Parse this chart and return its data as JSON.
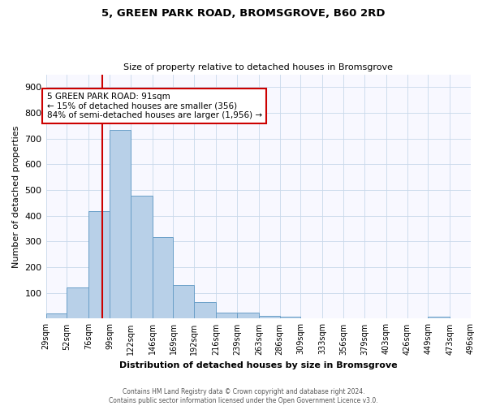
{
  "title": "5, GREEN PARK ROAD, BROMSGROVE, B60 2RD",
  "subtitle": "Size of property relative to detached houses in Bromsgrove",
  "xlabel": "Distribution of detached houses by size in Bromsgrove",
  "ylabel": "Number of detached properties",
  "bin_edges": [
    29,
    52,
    76,
    99,
    122,
    146,
    169,
    192,
    216,
    239,
    263,
    286,
    309,
    333,
    356,
    379,
    403,
    426,
    449,
    473,
    496
  ],
  "counts": [
    20,
    122,
    418,
    733,
    479,
    318,
    131,
    63,
    25,
    22,
    12,
    8,
    0,
    0,
    0,
    0,
    0,
    0,
    8,
    0
  ],
  "bar_color": "#b8d0e8",
  "bar_edge_color": "#6a9fc8",
  "subject_value": 91,
  "subject_line_color": "#cc0000",
  "annotation_line1": "5 GREEN PARK ROAD: 91sqm",
  "annotation_line2": "← 15% of detached houses are smaller (356)",
  "annotation_line3": "84% of semi-detached houses are larger (1,956) →",
  "annotation_box_edge_color": "#cc0000",
  "ylim": [
    0,
    950
  ],
  "yticks": [
    0,
    100,
    200,
    300,
    400,
    500,
    600,
    700,
    800,
    900
  ],
  "tick_labels": [
    "29sqm",
    "52sqm",
    "76sqm",
    "99sqm",
    "122sqm",
    "146sqm",
    "169sqm",
    "192sqm",
    "216sqm",
    "239sqm",
    "263sqm",
    "286sqm",
    "309sqm",
    "333sqm",
    "356sqm",
    "379sqm",
    "403sqm",
    "426sqm",
    "449sqm",
    "473sqm",
    "496sqm"
  ],
  "footer_line1": "Contains HM Land Registry data © Crown copyright and database right 2024.",
  "footer_line2": "Contains public sector information licensed under the Open Government Licence v3.0.",
  "background_color": "#f8f8ff",
  "grid_color": "#c8d8ea",
  "title_fontsize": 9.5,
  "subtitle_fontsize": 8,
  "ylabel_fontsize": 8,
  "xlabel_fontsize": 8,
  "ytick_fontsize": 8,
  "xtick_fontsize": 7
}
